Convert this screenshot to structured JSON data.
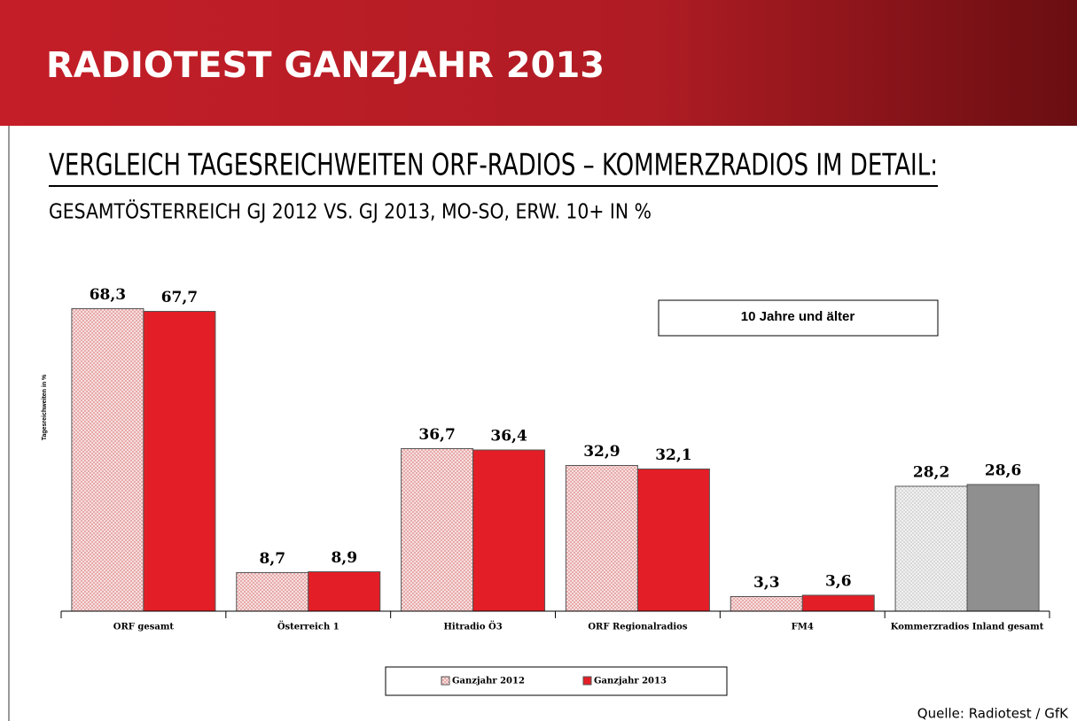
{
  "header": {
    "title": "RADIOTEST GANZJAHR 2013"
  },
  "chart_data": {
    "type": "bar",
    "title": "VERGLEICH TAGESREICHWEITEN ORF-RADIOS – KOMMERZRADIOS IM DETAIL:",
    "subtitle": "GESAMTÖSTERREICH GJ 2012 VS. GJ 2013, MO-SO, ERW. 10+ IN %",
    "y_label": "Tagesreichweiten in %",
    "annotation": "10 Jahre und älter",
    "source": "Quelle: Radiotest / GfK",
    "categories": [
      "ORF gesamt",
      "Österreich 1",
      "Hitradio Ö3",
      "ORF Regionalradios",
      "FM4",
      "Kommerzradios Inland gesamt"
    ],
    "series": [
      {
        "name": "Ganzjahr 2012",
        "color": "#e8a8a8",
        "hatched": true,
        "colors": [
          "#e8a8a8",
          "#e8a8a8",
          "#e8a8a8",
          "#e8a8a8",
          "#e8a8a8",
          "#d8d8d8"
        ],
        "values": [
          68.3,
          8.7,
          36.7,
          32.9,
          3.3,
          28.2
        ],
        "value_labels": [
          "68,3",
          "8,7",
          "36,7",
          "32,9",
          "3,3",
          "28,2"
        ]
      },
      {
        "name": "Ganzjahr 2013",
        "color": "#e41e26",
        "hatched": false,
        "colors": [
          "#e41e26",
          "#e41e26",
          "#e41e26",
          "#e41e26",
          "#e41e26",
          "#8f8f8f"
        ],
        "values": [
          67.7,
          8.9,
          36.4,
          32.1,
          3.6,
          28.6
        ],
        "value_labels": [
          "67,7",
          "8,9",
          "36,4",
          "32,1",
          "3,6",
          "28,6"
        ]
      }
    ],
    "ylim": [
      0,
      70
    ],
    "legend": "bottom"
  }
}
